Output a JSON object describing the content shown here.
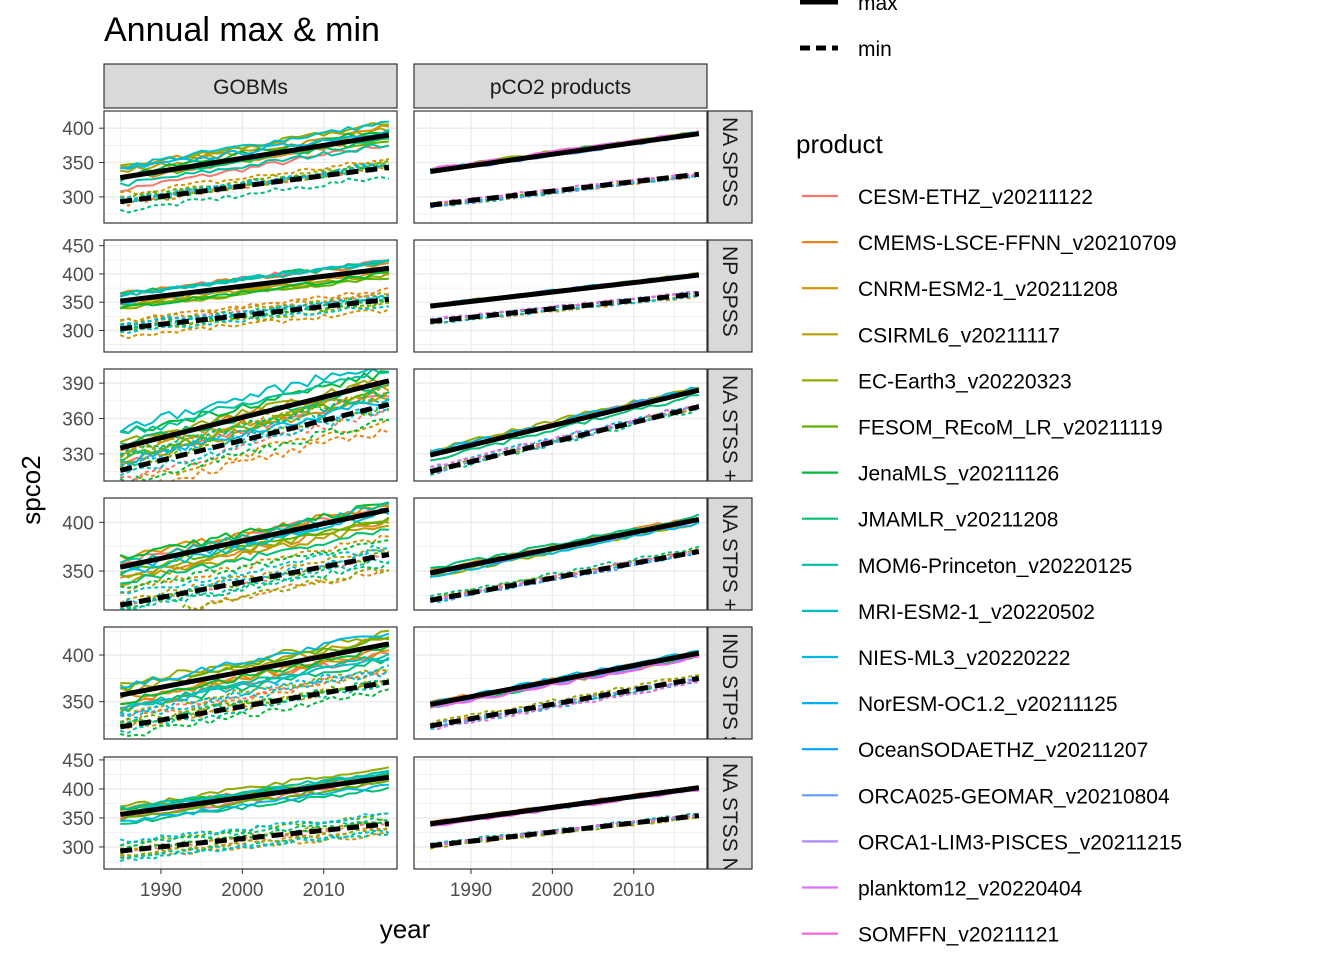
{
  "chart_data": {
    "type": "line",
    "title": "Annual max & min",
    "xlabel": "year",
    "ylabel": "spco2",
    "columns": [
      "GOBMs",
      "pCO2 products"
    ],
    "rows": [
      {
        "label": "NA SPSS",
        "yticks": [
          300,
          350,
          400
        ],
        "ylim": [
          262,
          425
        ]
      },
      {
        "label": "NP SPSS",
        "yticks": [
          300,
          350,
          400,
          450
        ],
        "ylim": [
          262,
          460
        ]
      },
      {
        "label": "NA STSS + SP STSS",
        "yticks": [
          330,
          360,
          390
        ],
        "ylim": [
          307,
          402
        ]
      },
      {
        "label": "NA STPS + SP STPS",
        "yticks": [
          350,
          400
        ],
        "ylim": [
          310,
          425
        ]
      },
      {
        "label": "IND STPS SA + SP STPS",
        "yticks": [
          350,
          400
        ],
        "ylim": [
          310,
          430
        ]
      },
      {
        "label": "NA STSS NA + SP STSS",
        "yticks": [
          300,
          350,
          400,
          450
        ],
        "ylim": [
          262,
          455
        ]
      }
    ],
    "xlim": [
      1983,
      2019
    ],
    "xticks": [
      1990,
      2000,
      2010
    ],
    "mean_lines": [
      {
        "name": "max",
        "dash": "solid"
      },
      {
        "name": "min",
        "dash": "dashed"
      }
    ],
    "panels": [
      [
        {
          "max": [
            328,
            390
          ],
          "min": [
            293,
            343
          ]
        },
        {
          "max": [
            337,
            392
          ],
          "min": [
            288,
            333
          ]
        }
      ],
      [
        {
          "max": [
            352,
            410
          ],
          "min": [
            303,
            355
          ]
        },
        {
          "max": [
            343,
            398
          ],
          "min": [
            316,
            365
          ]
        }
      ],
      [
        {
          "max": [
            335,
            392
          ],
          "min": [
            316,
            372
          ]
        },
        {
          "max": [
            329,
            384
          ],
          "min": [
            315,
            370
          ]
        }
      ],
      [
        {
          "max": [
            354,
            413
          ],
          "min": [
            315,
            367
          ]
        },
        {
          "max": [
            348,
            403
          ],
          "min": [
            320,
            370
          ]
        }
      ],
      [
        {
          "max": [
            357,
            412
          ],
          "min": [
            323,
            371
          ]
        },
        {
          "max": [
            347,
            402
          ],
          "min": [
            324,
            375
          ]
        }
      ],
      [
        {
          "max": [
            356,
            420
          ],
          "min": [
            293,
            340
          ]
        },
        {
          "max": [
            340,
            402
          ],
          "min": [
            302,
            354
          ]
        }
      ]
    ],
    "linetype_legend": {
      "items": [
        {
          "label": "max",
          "dash": "solid"
        },
        {
          "label": "min",
          "dash": "dashed"
        }
      ]
    },
    "color_legend": {
      "title": "product",
      "items": [
        {
          "label": "CESM-ETHZ_v20211122",
          "color": "#F8766D"
        },
        {
          "label": "CMEMS-LSCE-FFNN_v20210709",
          "color": "#E7861B"
        },
        {
          "label": "CNRM-ESM2-1_v20211208",
          "color": "#D39200"
        },
        {
          "label": "CSIRML6_v20211117",
          "color": "#B79F00"
        },
        {
          "label": "EC-Earth3_v20220323",
          "color": "#93AA00"
        },
        {
          "label": "FESOM_REcoM_LR_v20211119",
          "color": "#5EB300"
        },
        {
          "label": "JenaMLS_v20211126",
          "color": "#00BA38"
        },
        {
          "label": "JMAMLR_v20211208",
          "color": "#00BF74"
        },
        {
          "label": "MOM6-Princeton_v20220125",
          "color": "#00C19F"
        },
        {
          "label": "MRI-ESM2-1_v20220502",
          "color": "#00BFC4"
        },
        {
          "label": "NIES-ML3_v20220222",
          "color": "#00B9E3"
        },
        {
          "label": "NorESM-OC1.2_v20211125",
          "color": "#00ADFA"
        },
        {
          "label": "OceanSODAETHZ_v20211207",
          "color": "#00A5FF"
        },
        {
          "label": "ORCA025-GEOMAR_v20210804",
          "color": "#619CFF"
        },
        {
          "label": "ORCA1-LIM3-PISCES_v20211215",
          "color": "#AE87FF"
        },
        {
          "label": "planktom12_v20220404",
          "color": "#DB72FB"
        },
        {
          "label": "SOMFFN_v20211121",
          "color": "#F564E3"
        }
      ]
    },
    "grid": true
  }
}
